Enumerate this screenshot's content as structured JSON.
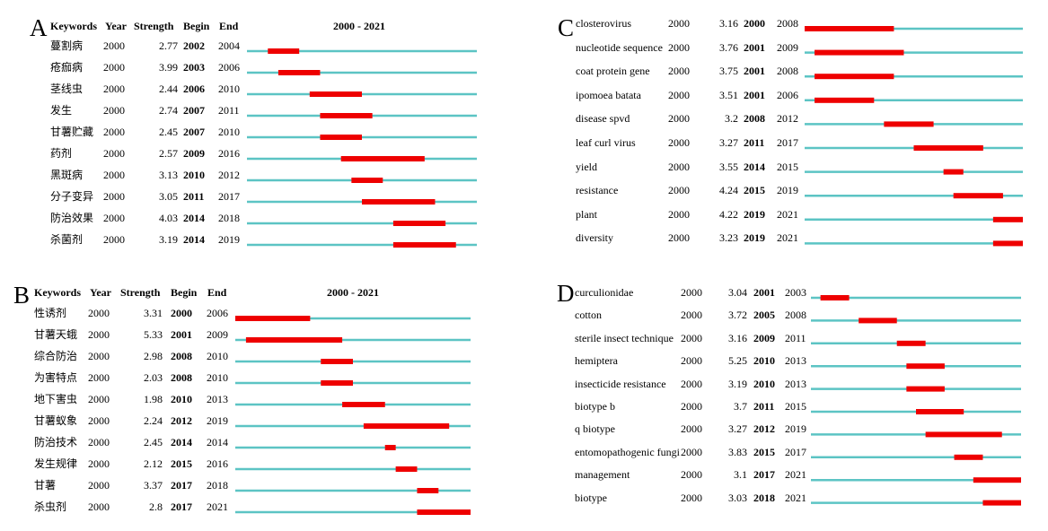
{
  "colors": {
    "baseline": "#5cc4c4",
    "burst": "#ee0000",
    "text": "#000000"
  },
  "headers": {
    "keywords": "Keywords",
    "year": "Year",
    "strength": "Strength",
    "begin": "Begin",
    "end": "End",
    "range": "2000 - 2021"
  },
  "chart_data": [
    {
      "type": "table",
      "panel": "A",
      "show_header": true,
      "range": [
        2000,
        2021
      ],
      "rows": [
        {
          "keyword": "蔓割病",
          "year": 2000,
          "strength": "2.77",
          "begin": 2002,
          "end": 2004
        },
        {
          "keyword": "疮痂病",
          "year": 2000,
          "strength": "3.99",
          "begin": 2003,
          "end": 2006
        },
        {
          "keyword": "茎线虫",
          "year": 2000,
          "strength": "2.44",
          "begin": 2006,
          "end": 2010
        },
        {
          "keyword": "发生",
          "year": 2000,
          "strength": "2.74",
          "begin": 2007,
          "end": 2011
        },
        {
          "keyword": "甘薯贮藏",
          "year": 2000,
          "strength": "2.45",
          "begin": 2007,
          "end": 2010
        },
        {
          "keyword": "药剂",
          "year": 2000,
          "strength": "2.57",
          "begin": 2009,
          "end": 2016
        },
        {
          "keyword": "黑斑病",
          "year": 2000,
          "strength": "3.13",
          "begin": 2010,
          "end": 2012
        },
        {
          "keyword": "分子变异",
          "year": 2000,
          "strength": "3.05",
          "begin": 2011,
          "end": 2017
        },
        {
          "keyword": "防治效果",
          "year": 2000,
          "strength": "4.03",
          "begin": 2014,
          "end": 2018
        },
        {
          "keyword": "杀菌剂",
          "year": 2000,
          "strength": "3.19",
          "begin": 2014,
          "end": 2019
        }
      ]
    },
    {
      "type": "table",
      "panel": "B",
      "show_header": true,
      "range": [
        2000,
        2021
      ],
      "rows": [
        {
          "keyword": "性诱剂",
          "year": 2000,
          "strength": "3.31",
          "begin": 2000,
          "end": 2006
        },
        {
          "keyword": "甘薯天蛾",
          "year": 2000,
          "strength": "5.33",
          "begin": 2001,
          "end": 2009
        },
        {
          "keyword": "综合防治",
          "year": 2000,
          "strength": "2.98",
          "begin": 2008,
          "end": 2010
        },
        {
          "keyword": "为害特点",
          "year": 2000,
          "strength": "2.03",
          "begin": 2008,
          "end": 2010
        },
        {
          "keyword": "地下害虫",
          "year": 2000,
          "strength": "1.98",
          "begin": 2010,
          "end": 2013
        },
        {
          "keyword": "甘薯蚁象",
          "year": 2000,
          "strength": "2.24",
          "begin": 2012,
          "end": 2019
        },
        {
          "keyword": "防治技术",
          "year": 2000,
          "strength": "2.45",
          "begin": 2014,
          "end": 2014
        },
        {
          "keyword": "发生规律",
          "year": 2000,
          "strength": "2.12",
          "begin": 2015,
          "end": 2016
        },
        {
          "keyword": "甘薯",
          "year": 2000,
          "strength": "3.37",
          "begin": 2017,
          "end": 2018
        },
        {
          "keyword": "杀虫剂",
          "year": 2000,
          "strength": "2.8",
          "begin": 2017,
          "end": 2021
        }
      ]
    },
    {
      "type": "table",
      "panel": "C",
      "show_header": false,
      "range": [
        2000,
        2021
      ],
      "rows": [
        {
          "keyword": "closterovirus",
          "year": 2000,
          "strength": "3.16",
          "begin": 2000,
          "end": 2008
        },
        {
          "keyword": "nucleotide sequence",
          "year": 2000,
          "strength": "3.76",
          "begin": 2001,
          "end": 2009
        },
        {
          "keyword": "coat protein gene",
          "year": 2000,
          "strength": "3.75",
          "begin": 2001,
          "end": 2008
        },
        {
          "keyword": "ipomoea batata",
          "year": 2000,
          "strength": "3.51",
          "begin": 2001,
          "end": 2006
        },
        {
          "keyword": "disease spvd",
          "year": 2000,
          "strength": "3.2",
          "begin": 2008,
          "end": 2012
        },
        {
          "keyword": "leaf curl virus",
          "year": 2000,
          "strength": "3.27",
          "begin": 2011,
          "end": 2017
        },
        {
          "keyword": "yield",
          "year": 2000,
          "strength": "3.55",
          "begin": 2014,
          "end": 2015
        },
        {
          "keyword": "resistance",
          "year": 2000,
          "strength": "4.24",
          "begin": 2015,
          "end": 2019
        },
        {
          "keyword": "plant",
          "year": 2000,
          "strength": "4.22",
          "begin": 2019,
          "end": 2021
        },
        {
          "keyword": "diversity",
          "year": 2000,
          "strength": "3.23",
          "begin": 2019,
          "end": 2021
        }
      ]
    },
    {
      "type": "table",
      "panel": "D",
      "show_header": false,
      "range": [
        2000,
        2021
      ],
      "rows": [
        {
          "keyword": "curculionidae",
          "year": 2000,
          "strength": "3.04",
          "begin": 2001,
          "end": 2003
        },
        {
          "keyword": "cotton",
          "year": 2000,
          "strength": "3.72",
          "begin": 2005,
          "end": 2008
        },
        {
          "keyword": "sterile insect technique",
          "year": 2000,
          "strength": "3.16",
          "begin": 2009,
          "end": 2011
        },
        {
          "keyword": "hemiptera",
          "year": 2000,
          "strength": "5.25",
          "begin": 2010,
          "end": 2013
        },
        {
          "keyword": "insecticide resistance",
          "year": 2000,
          "strength": "3.19",
          "begin": 2010,
          "end": 2013
        },
        {
          "keyword": "biotype b",
          "year": 2000,
          "strength": "3.7",
          "begin": 2011,
          "end": 2015
        },
        {
          "keyword": "q biotype",
          "year": 2000,
          "strength": "3.27",
          "begin": 2012,
          "end": 2019
        },
        {
          "keyword": "entomopathogenic fungi",
          "year": 2000,
          "strength": "3.83",
          "begin": 2015,
          "end": 2017
        },
        {
          "keyword": "management",
          "year": 2000,
          "strength": "3.1",
          "begin": 2017,
          "end": 2021
        },
        {
          "keyword": "biotype",
          "year": 2000,
          "strength": "3.03",
          "begin": 2018,
          "end": 2021
        }
      ]
    }
  ],
  "panels": [
    {
      "letter": "A"
    },
    {
      "letter": "B"
    },
    {
      "letter": "C"
    },
    {
      "letter": "D"
    }
  ]
}
